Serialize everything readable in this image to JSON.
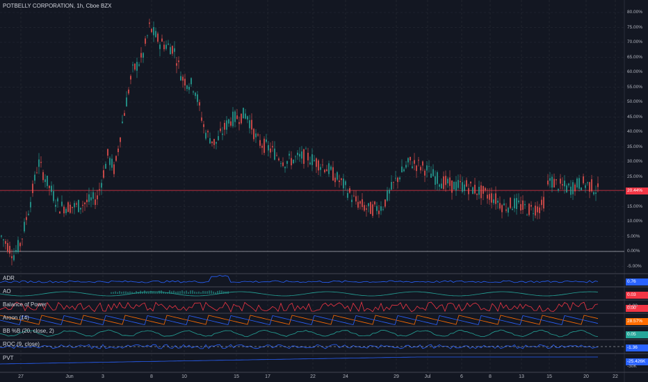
{
  "header": {
    "title": "POTBELLY CORPORATION, 1h, Cboe BZX"
  },
  "price_axis": {
    "labels": [
      "80.00%",
      "75.00%",
      "70.00%",
      "65.00%",
      "60.00%",
      "55.00%",
      "50.00%",
      "45.00%",
      "40.00%",
      "35.00%",
      "30.00%",
      "25.00%",
      "20.00%",
      "15.00%",
      "10.00%",
      "5.00%",
      "0.00%",
      "-5.00%"
    ],
    "current_tag": "20.44%",
    "current_color": "#f23645"
  },
  "panes": [
    {
      "label": "ADR",
      "value": "0.76",
      "tag_color": "#2962ff",
      "line_color": "#2962ff"
    },
    {
      "label": "AO",
      "value": "0.03",
      "tag_color": "#f23645",
      "line_color": "#26a69a"
    },
    {
      "label": "Balance of Power",
      "value": "0.00",
      "value2": "-1.00",
      "tag_color": "#f23645",
      "line_color": "#f23645"
    },
    {
      "label": "Aroon (14)",
      "value": "28.57%",
      "tag_color": "#ff6d00",
      "line_color": "#ff6d00",
      "line_color2": "#2962ff"
    },
    {
      "label": "BB %B (20, close, 2)",
      "value": "0.05",
      "tag_color": "#26a69a",
      "line_color": "#26a69a"
    },
    {
      "label": "ROC (9, close)",
      "value": "-1.36",
      "tag_color": "#2962ff",
      "line_color": "#2962ff"
    },
    {
      "label": "PVT",
      "value": "-25.426K",
      "value2": "-30K",
      "tag_color": "#2962ff",
      "line_color": "#2962ff"
    }
  ],
  "time_axis": [
    "27",
    "Jun",
    "3",
    "8",
    "10",
    "15",
    "17",
    "22",
    "24",
    "29",
    "Jul",
    "6",
    "8",
    "13",
    "15",
    "20",
    "22"
  ],
  "colors": {
    "up": "#26a69a",
    "down": "#ef5350",
    "bg": "#131722",
    "grid": "#2a2e39"
  }
}
